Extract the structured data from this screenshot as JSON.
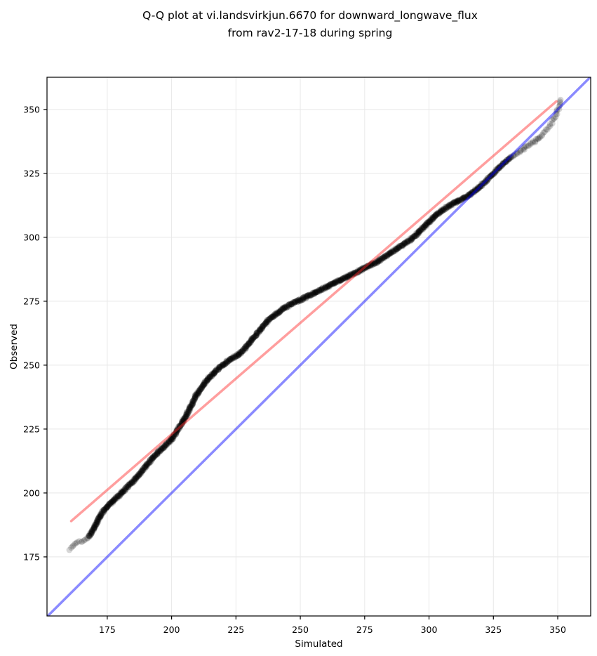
{
  "figure": {
    "title_line1": "Q-Q plot at vi.landsvirkjun.6670 for downward_longwave_flux",
    "title_line2": "from rav2-17-18 during spring"
  },
  "chart_data": {
    "type": "scatter",
    "subtype": "qq-plot",
    "title": "Q-Q plot at vi.landsvirkjun.6670 for downward_longwave_flux from rav2-17-18 during spring",
    "xlabel": "Simulated",
    "ylabel": "Observed",
    "xlim": [
      151.6,
      362.8
    ],
    "ylim": [
      151.9,
      362.6
    ],
    "xticks": [
      175,
      200,
      225,
      250,
      275,
      300,
      325,
      350
    ],
    "yticks": [
      175,
      200,
      225,
      250,
      275,
      300,
      325,
      350
    ],
    "grid": true,
    "grid_color": "#e8e8e8",
    "legend": "none",
    "identity_line": {
      "name": "identity reference y = x",
      "x": [
        151.9,
        362.6
      ],
      "y": [
        151.9,
        362.6
      ],
      "color": "#0000ff",
      "alpha": 0.46,
      "width": 3.5
    },
    "fit_line": {
      "name": "fitted line",
      "x": [
        161.0,
        349.5
      ],
      "y": [
        189.0,
        353.2
      ],
      "color": "#ff2828",
      "alpha": 0.45,
      "width": 3.5
    },
    "scatter": {
      "name": "observed vs simulated quantiles",
      "color": "#000000",
      "alpha": 0.16,
      "marker_radius": 4.4,
      "points": [
        [
          160.5,
          178
        ],
        [
          162,
          179.5
        ],
        [
          164,
          181
        ],
        [
          166,
          181.5
        ],
        [
          168,
          183
        ],
        [
          169.5,
          185.5
        ],
        [
          171,
          188.5
        ],
        [
          172.5,
          191.5
        ],
        [
          174,
          193.5
        ],
        [
          176,
          195.5
        ],
        [
          178,
          197.5
        ],
        [
          180,
          199.5
        ],
        [
          182.5,
          202
        ],
        [
          185,
          204.5
        ],
        [
          187.5,
          207.5
        ],
        [
          190,
          210.5
        ],
        [
          192.5,
          213.5
        ],
        [
          195,
          216
        ],
        [
          197.5,
          218.5
        ],
        [
          200,
          221
        ],
        [
          202,
          224
        ],
        [
          204,
          227.5
        ],
        [
          206,
          231
        ],
        [
          208,
          235
        ],
        [
          210,
          239
        ],
        [
          212,
          242
        ],
        [
          214,
          244.5
        ],
        [
          216,
          246.5
        ],
        [
          218,
          248.5
        ],
        [
          220,
          250
        ],
        [
          222.5,
          252
        ],
        [
          225,
          253.5
        ],
        [
          227.5,
          255.5
        ],
        [
          230,
          258.5
        ],
        [
          232.5,
          261.5
        ],
        [
          235,
          264.5
        ],
        [
          237.5,
          267.5
        ],
        [
          240,
          269.5
        ],
        [
          242.5,
          271.5
        ],
        [
          245,
          273
        ],
        [
          247.5,
          274.5
        ],
        [
          250,
          275.5
        ],
        [
          253,
          277
        ],
        [
          256,
          278.5
        ],
        [
          259,
          280
        ],
        [
          262,
          281.5
        ],
        [
          265,
          283
        ],
        [
          268,
          284.5
        ],
        [
          271,
          286
        ],
        [
          274,
          287.5
        ],
        [
          277,
          289
        ],
        [
          280,
          290.5
        ],
        [
          283,
          292.5
        ],
        [
          286,
          294.5
        ],
        [
          289,
          296.5
        ],
        [
          292,
          298.5
        ],
        [
          295,
          301
        ],
        [
          298,
          304
        ],
        [
          301,
          307
        ],
        [
          303,
          309
        ],
        [
          305,
          310.5
        ],
        [
          308,
          312.5
        ],
        [
          311,
          314
        ],
        [
          314,
          315.5
        ],
        [
          317,
          317.5
        ],
        [
          320,
          320
        ],
        [
          323,
          323
        ],
        [
          326,
          326
        ],
        [
          329,
          329
        ],
        [
          332,
          331.5
        ],
        [
          335,
          333.5
        ],
        [
          338,
          335.5
        ],
        [
          341,
          337.5
        ],
        [
          344,
          340
        ],
        [
          346,
          342.5
        ],
        [
          348,
          345.5
        ],
        [
          349.5,
          348.5
        ],
        [
          350.5,
          351
        ],
        [
          351.2,
          353
        ],
        [
          351.6,
          354.5
        ]
      ]
    }
  }
}
